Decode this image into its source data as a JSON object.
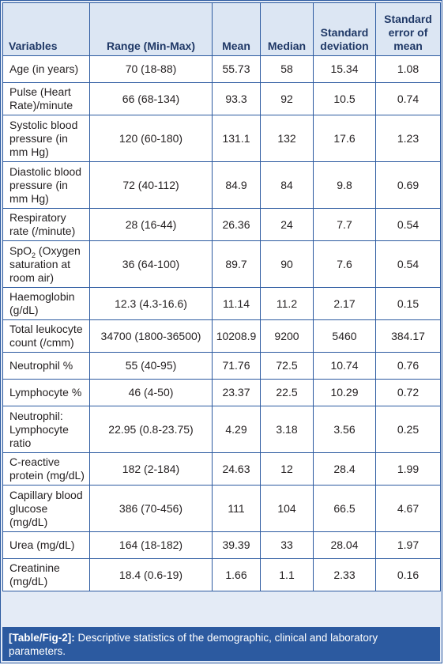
{
  "table": {
    "headers": [
      "Variables",
      "Range (Min-Max)",
      "Mean",
      "Median",
      "Standard deviation",
      "Standard error of mean"
    ],
    "rows": [
      {
        "label": "Age (in years)",
        "cells": [
          "70 (18-88)",
          "55.73",
          "58",
          "15.34",
          "1.08"
        ]
      },
      {
        "label": "Pulse (Heart Rate)/minute",
        "cells": [
          "66 (68-134)",
          "93.3",
          "92",
          "10.5",
          "0.74"
        ]
      },
      {
        "label": "Systolic blood pressure (in mm Hg)",
        "cells": [
          "120 (60-180)",
          "131.1",
          "132",
          "17.6",
          "1.23"
        ]
      },
      {
        "label": "Diastolic blood pressure (in mm Hg)",
        "cells": [
          "72 (40-112)",
          "84.9",
          "84",
          "9.8",
          "0.69"
        ]
      },
      {
        "label": "Respiratory rate (/minute)",
        "cells": [
          "28 (16-44)",
          "26.36",
          "24",
          "7.7",
          "0.54"
        ]
      },
      {
        "label_pre": "SpO",
        "label_sub": "2",
        "label_post": " (Oxygen saturation at room air)",
        "cells": [
          "36 (64-100)",
          "89.7",
          "90",
          "7.6",
          "0.54"
        ]
      },
      {
        "label": "Haemoglobin (g/dL)",
        "cells": [
          "12.3 (4.3-16.6)",
          "11.14",
          "11.2",
          "2.17",
          "0.15"
        ]
      },
      {
        "label": "Total leukocyte count (/cmm)",
        "cells": [
          "34700 (1800-36500)",
          "10208.9",
          "9200",
          "5460",
          "384.17"
        ]
      },
      {
        "label": "Neutrophil %",
        "cells": [
          "55 (40-95)",
          "71.76",
          "72.5",
          "10.74",
          "0.76"
        ]
      },
      {
        "label": "Lymphocyte %",
        "cells": [
          "46 (4-50)",
          "23.37",
          "22.5",
          "10.29",
          "0.72"
        ]
      },
      {
        "label": "Neutrophil: Lymphocyte ratio",
        "cells": [
          "22.95 (0.8-23.75)",
          "4.29",
          "3.18",
          "3.56",
          "0.25"
        ]
      },
      {
        "label": "C-reactive protein (mg/dL)",
        "cells": [
          "182 (2-184)",
          "24.63",
          "12",
          "28.4",
          "1.99"
        ]
      },
      {
        "label": "Capillary blood glucose (mg/dL)",
        "cells": [
          "386 (70-456)",
          "111",
          "104",
          "66.5",
          "4.67"
        ]
      },
      {
        "label": "Urea (mg/dL)",
        "cells": [
          "164 (18-182)",
          "39.39",
          "33",
          "28.04",
          "1.97"
        ]
      },
      {
        "label": "Creatinine (mg/dL)",
        "cells": [
          "18.4 (0.6-19)",
          "1.66",
          "1.1",
          "2.33",
          "0.16"
        ]
      }
    ]
  },
  "caption": {
    "tag": "[Table/Fig-2]:",
    "text": " Descriptive statistics of the demographic, clinical and laboratory parameters."
  },
  "colors": {
    "border": "#2c5aa0",
    "header_background": "#dce6f3",
    "header_text": "#1f3866",
    "caption_background": "#2c5aa0",
    "caption_text": "#ffffff"
  }
}
